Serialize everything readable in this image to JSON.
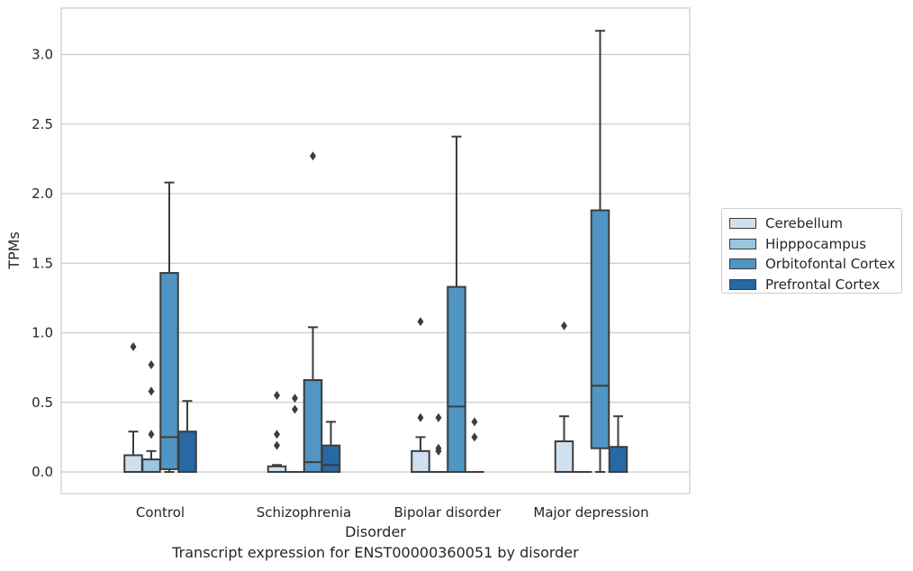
{
  "chart_data": {
    "type": "boxplot",
    "title": "Transcript expression for ENST00000360051 by disorder",
    "xlabel": "Disorder",
    "ylabel": "TPMs",
    "ylim": [
      -0.15,
      3.32
    ],
    "yticks": [
      "0.0",
      "0.5",
      "1.0",
      "1.5",
      "2.0",
      "2.5",
      "3.0"
    ],
    "ytick_values": [
      0,
      0.5,
      1.0,
      1.5,
      2.0,
      2.5,
      3.0
    ],
    "categories": [
      "Control",
      "Schizophrenia",
      "Bipolar disorder",
      "Major depression"
    ],
    "grid": "horizontal",
    "legend_position": "outside right",
    "series": [
      {
        "name": "Cerebellum",
        "color": "#cfe0f1",
        "boxes": [
          {
            "q1": 0.0,
            "median": 0.0,
            "q3": 0.12,
            "whisker_low": 0.0,
            "whisker_high": 0.29,
            "outliers": [
              0.9
            ]
          },
          {
            "q1": 0.0,
            "median": 0.0,
            "q3": 0.04,
            "whisker_low": 0.0,
            "whisker_high": 0.05,
            "outliers": [
              0.19,
              0.27,
              0.55
            ]
          },
          {
            "q1": 0.0,
            "median": 0.0,
            "q3": 0.15,
            "whisker_low": 0.0,
            "whisker_high": 0.25,
            "outliers": [
              0.39,
              1.08
            ]
          },
          {
            "q1": 0.0,
            "median": 0.0,
            "q3": 0.22,
            "whisker_low": 0.0,
            "whisker_high": 0.4,
            "outliers": [
              1.05
            ]
          }
        ]
      },
      {
        "name": "Hipppocampus",
        "color": "#9bc6e0",
        "boxes": [
          {
            "q1": 0.0,
            "median": 0.0,
            "q3": 0.09,
            "whisker_low": 0.0,
            "whisker_high": 0.15,
            "outliers": [
              0.27,
              0.58,
              0.77
            ]
          },
          {
            "q1": 0.0,
            "median": 0.0,
            "q3": 0.0,
            "whisker_low": 0.0,
            "whisker_high": 0.0,
            "outliers": [
              0.45,
              0.53
            ]
          },
          {
            "q1": 0.0,
            "median": 0.0,
            "q3": 0.0,
            "whisker_low": 0.0,
            "whisker_high": 0.0,
            "outliers": [
              0.15,
              0.17,
              0.39
            ]
          },
          {
            "q1": 0.0,
            "median": 0.0,
            "q3": 0.0,
            "whisker_low": 0.0,
            "whisker_high": 0.0,
            "outliers": []
          }
        ]
      },
      {
        "name": "Orbitofontal Cortex",
        "color": "#5095c3",
        "boxes": [
          {
            "q1": 0.02,
            "median": 0.25,
            "q3": 1.43,
            "whisker_low": 0.0,
            "whisker_high": 2.08,
            "outliers": []
          },
          {
            "q1": 0.0,
            "median": 0.07,
            "q3": 0.66,
            "whisker_low": 0.0,
            "whisker_high": 1.04,
            "outliers": [
              2.27
            ]
          },
          {
            "q1": 0.0,
            "median": 0.47,
            "q3": 1.33,
            "whisker_low": 0.0,
            "whisker_high": 2.41,
            "outliers": []
          },
          {
            "q1": 0.17,
            "median": 0.62,
            "q3": 1.88,
            "whisker_low": 0.0,
            "whisker_high": 3.17,
            "outliers": []
          }
        ]
      },
      {
        "name": "Prefrontal Cortex",
        "color": "#2768a5",
        "boxes": [
          {
            "q1": 0.0,
            "median": 0.0,
            "q3": 0.29,
            "whisker_low": 0.0,
            "whisker_high": 0.51,
            "outliers": []
          },
          {
            "q1": 0.0,
            "median": 0.05,
            "q3": 0.19,
            "whisker_low": 0.0,
            "whisker_high": 0.36,
            "outliers": []
          },
          {
            "q1": 0.0,
            "median": 0.0,
            "q3": 0.0,
            "whisker_low": 0.0,
            "whisker_high": 0.0,
            "outliers": [
              0.25,
              0.36
            ]
          },
          {
            "q1": 0.0,
            "median": 0.0,
            "q3": 0.18,
            "whisker_low": 0.0,
            "whisker_high": 0.4,
            "outliers": []
          }
        ]
      }
    ]
  }
}
